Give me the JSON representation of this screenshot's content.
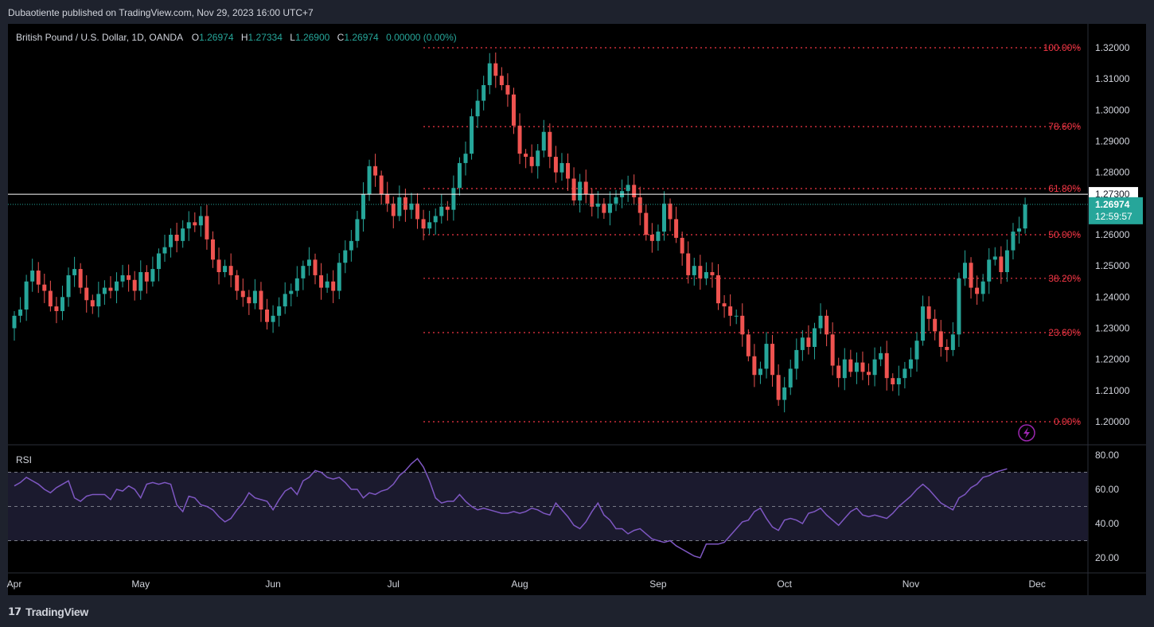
{
  "header": {
    "published_text": "Dubaotiente published on TradingView.com, Nov 29, 2023 16:00 UTC+7"
  },
  "brand": {
    "name": "TradingView"
  },
  "legend": {
    "symbol": "British Pound / U.S. Dollar, 1D, OANDA",
    "o_label": "O",
    "o_value": "1.26974",
    "h_label": "H",
    "h_value": "1.27334",
    "l_label": "L",
    "l_value": "1.26900",
    "c_label": "C",
    "c_value": "1.26974",
    "change": "0.00000 (0.00%)"
  },
  "colors": {
    "up": "#26a69a",
    "down": "#ef5350",
    "fib": "#f23645",
    "rsi_line": "#7e57c2",
    "rsi_band": "#1b1a2e",
    "background": "#000000"
  },
  "chart_data": {
    "type": "candlestick",
    "symbol": "GBPUSD",
    "timeframe": "1D",
    "ylim": [
      1.195,
      1.325
    ],
    "y_ticks": [
      "1.32000",
      "1.31000",
      "1.30000",
      "1.29000",
      "1.28000",
      "1.26000",
      "1.25000",
      "1.24000",
      "1.23000",
      "1.22000",
      "1.21000",
      "1.20000"
    ],
    "x_ticks": [
      "Apr",
      "May",
      "Jun",
      "Jul",
      "Aug",
      "Sep",
      "Oct",
      "Nov",
      "Dec"
    ],
    "month_start_index": {
      "Apr": 0,
      "May": 21,
      "Jun": 43,
      "Jul": 63,
      "Aug": 84,
      "Sep": 107,
      "Oct": 128,
      "Nov": 149,
      "Dec": 170
    },
    "highlight_price": {
      "value": 1.273,
      "label": "1.27300"
    },
    "last_price": {
      "value": 1.26974,
      "label": "1.26974",
      "countdown": "12:59:57"
    },
    "fib_levels": [
      {
        "label": "100.00%",
        "price": 1.32
      },
      {
        "label": "78.60%",
        "price": 1.2947
      },
      {
        "label": "61.80%",
        "price": 1.2748
      },
      {
        "label": "50.00%",
        "price": 1.26
      },
      {
        "label": "38.20%",
        "price": 1.246
      },
      {
        "label": "23.60%",
        "price": 1.2286
      },
      {
        "label": "0.00%",
        "price": 1.2
      }
    ],
    "closes": [
      1.234,
      1.236,
      1.245,
      1.2485,
      1.244,
      1.242,
      1.237,
      1.2355,
      1.24,
      1.247,
      1.249,
      1.243,
      1.239,
      1.237,
      1.241,
      1.243,
      1.242,
      1.245,
      1.247,
      1.2455,
      1.242,
      1.248,
      1.245,
      1.249,
      1.254,
      1.256,
      1.26,
      1.258,
      1.262,
      1.264,
      1.263,
      1.266,
      1.2585,
      1.252,
      1.248,
      1.25,
      1.247,
      1.242,
      1.24,
      1.238,
      1.242,
      1.236,
      1.232,
      1.234,
      1.237,
      1.241,
      1.242,
      1.246,
      1.25,
      1.252,
      1.247,
      1.243,
      1.245,
      1.242,
      1.251,
      1.255,
      1.258,
      1.265,
      1.273,
      1.282,
      1.279,
      1.273,
      1.27,
      1.266,
      1.272,
      1.268,
      1.27,
      1.265,
      1.262,
      1.264,
      1.266,
      1.269,
      1.268,
      1.275,
      1.283,
      1.286,
      1.298,
      1.303,
      1.308,
      1.315,
      1.311,
      1.308,
      1.305,
      1.295,
      1.286,
      1.285,
      1.282,
      1.287,
      1.293,
      1.285,
      1.28,
      1.283,
      1.278,
      1.271,
      1.277,
      1.273,
      1.269,
      1.27,
      1.267,
      1.27,
      1.272,
      1.274,
      1.276,
      1.272,
      1.267,
      1.26,
      1.258,
      1.261,
      1.27,
      1.265,
      1.259,
      1.254,
      1.247,
      1.25,
      1.246,
      1.248,
      1.247,
      1.238,
      1.237,
      1.234,
      1.234,
      1.228,
      1.221,
      1.215,
      1.217,
      1.225,
      1.215,
      1.207,
      1.211,
      1.217,
      1.223,
      1.227,
      1.224,
      1.23,
      1.234,
      1.228,
      1.218,
      1.214,
      1.22,
      1.216,
      1.219,
      1.216,
      1.215,
      1.22,
      1.222,
      1.214,
      1.212,
      1.214,
      1.217,
      1.22,
      1.226,
      1.237,
      1.233,
      1.229,
      1.224,
      1.223,
      1.228,
      1.246,
      1.251,
      1.243,
      1.241,
      1.245,
      1.252,
      1.253,
      1.248,
      1.255,
      1.261,
      1.262,
      1.2697
    ],
    "rsi": {
      "label": "RSI",
      "y_ticks": [
        "80.00",
        "60.00",
        "40.00",
        "20.00"
      ],
      "upper_band": 70,
      "middle": 50,
      "lower_band": 30,
      "values": [
        62,
        64,
        67,
        65,
        63,
        60,
        58,
        61,
        63,
        65,
        55,
        53,
        56,
        57,
        57,
        57,
        54,
        60,
        59,
        62,
        60,
        55,
        63,
        64,
        63,
        64,
        63,
        51,
        47,
        56,
        55,
        51,
        50,
        48,
        44,
        41,
        43,
        48,
        52,
        58,
        55,
        54,
        53,
        48,
        54,
        59,
        61,
        57,
        65,
        67,
        71,
        70,
        67,
        66,
        67,
        64,
        60,
        60,
        55,
        58,
        57,
        59,
        60,
        63,
        68,
        71,
        75,
        78,
        73,
        65,
        55,
        52,
        53,
        53,
        57,
        53,
        50,
        48,
        49,
        48,
        47,
        46,
        46,
        47,
        46,
        47,
        49,
        48,
        46,
        45,
        52,
        48,
        44,
        39,
        37,
        41,
        47,
        52,
        45,
        42,
        37,
        37,
        34,
        36,
        37,
        34,
        31,
        30,
        29,
        30,
        27,
        25,
        23,
        21,
        20,
        28,
        28,
        28,
        29,
        33,
        37,
        41,
        42,
        47,
        49,
        43,
        38,
        36,
        42,
        43,
        42,
        40,
        46,
        47,
        49,
        45,
        42,
        39,
        43,
        47,
        49,
        45,
        44,
        45,
        44,
        43,
        46,
        50,
        53,
        56,
        60,
        63,
        60,
        56,
        52,
        50,
        48,
        55,
        57,
        61,
        63,
        67,
        68,
        70,
        71,
        72
      ]
    }
  }
}
